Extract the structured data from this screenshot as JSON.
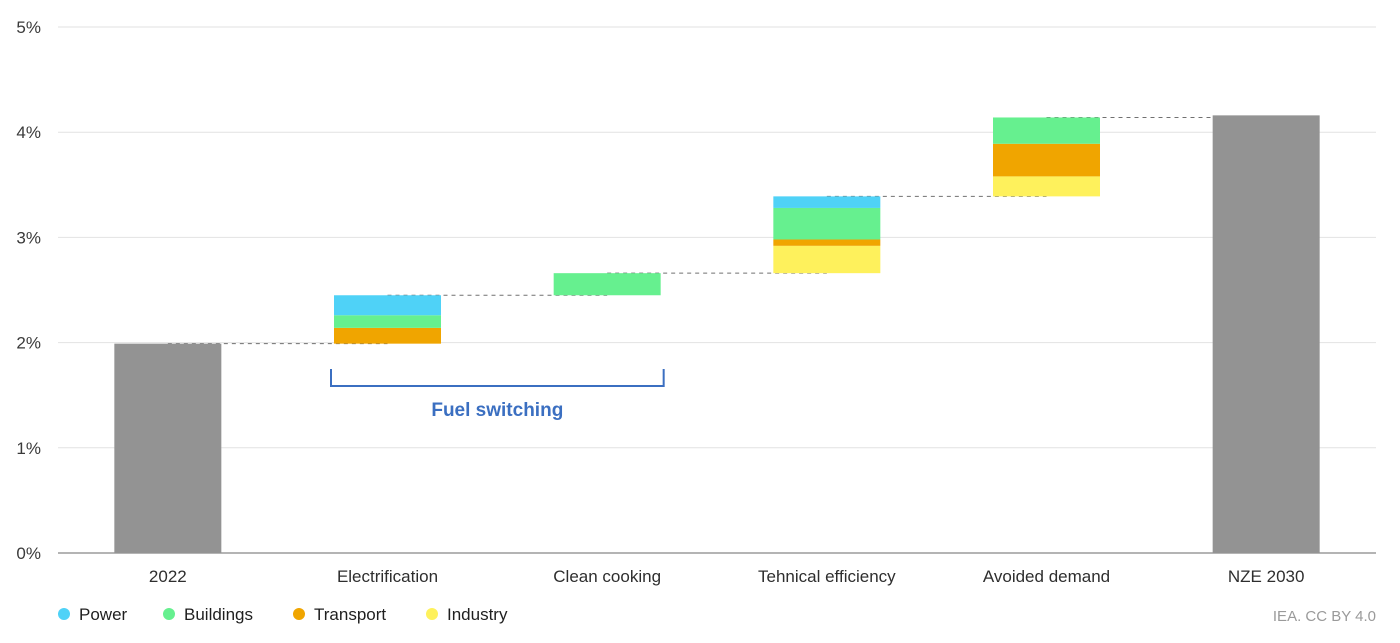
{
  "chart_data": {
    "type": "bar",
    "subtype": "waterfall-stacked",
    "categories": [
      "2022",
      "Electrification",
      "Clean cooking",
      "Tehnical efficiency",
      "Avoided demand",
      "NZE 2030"
    ],
    "ylim": [
      0,
      5
    ],
    "y_ticks": [
      {
        "value": 0,
        "label": "0%"
      },
      {
        "value": 1,
        "label": "1%"
      },
      {
        "value": 2,
        "label": "2%"
      },
      {
        "value": 3,
        "label": "3%"
      },
      {
        "value": 4,
        "label": "4%"
      },
      {
        "value": 5,
        "label": "5%"
      }
    ],
    "totals": [
      {
        "category": "2022",
        "value": 1.99
      },
      {
        "category": "NZE 2030",
        "value": 4.16
      }
    ],
    "series": [
      {
        "name": "Power",
        "color": "#4fd2f7",
        "values": [
          null,
          0.19,
          0,
          0.11,
          0,
          null
        ]
      },
      {
        "name": "Buildings",
        "color": "#66f08f",
        "values": [
          null,
          0.12,
          0.21,
          0.3,
          0.25,
          null
        ]
      },
      {
        "name": "Transport",
        "color": "#f0a500",
        "values": [
          null,
          0.15,
          0,
          0.06,
          0.31,
          null
        ]
      },
      {
        "name": "Industry",
        "color": "#fef15c",
        "values": [
          null,
          0,
          0,
          0.26,
          0.19,
          null
        ]
      }
    ],
    "total_color": "#939393",
    "grid": true,
    "legend_position": "bottom-left",
    "annotations": [
      {
        "text": "Fuel switching",
        "spans": [
          "Electrification",
          "Clean cooking"
        ]
      }
    ]
  },
  "credit": "IEA. CC BY 4.0"
}
